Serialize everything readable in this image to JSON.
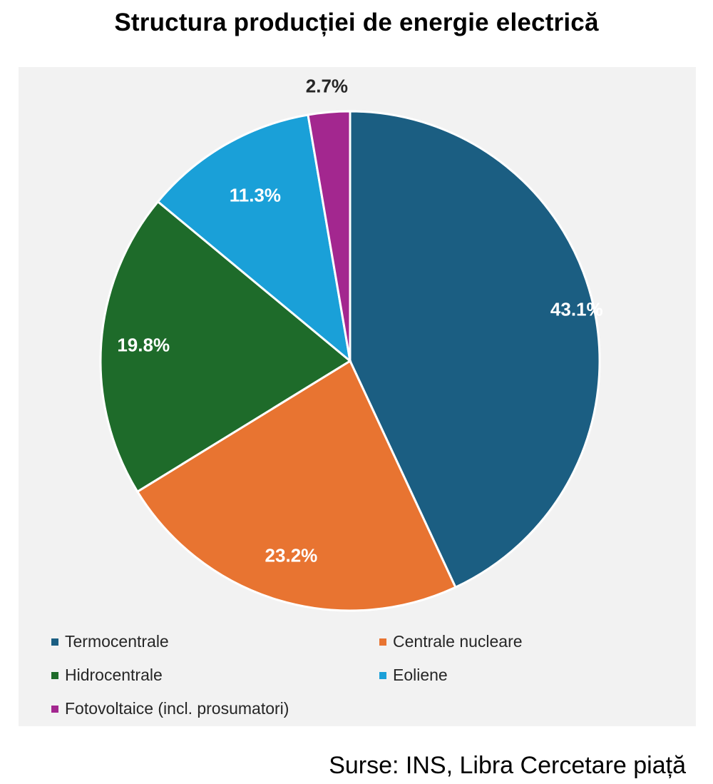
{
  "chart_data": {
    "type": "pie",
    "title": "Structura producției de energie electrică",
    "slices": [
      {
        "label": "Termocentrale",
        "value": 43.1,
        "display": "43.1%",
        "color": "#1b5e82",
        "label_color": "#ffffff"
      },
      {
        "label": "Centrale nucleare",
        "value": 23.2,
        "display": "23.2%",
        "color": "#e87431",
        "label_color": "#ffffff"
      },
      {
        "label": "Hidrocentrale",
        "value": 19.8,
        "display": "19.8%",
        "color": "#1e6b2a",
        "label_color": "#ffffff"
      },
      {
        "label": "Eoliene",
        "value": 11.3,
        "display": "11.3%",
        "color": "#1aa0d8",
        "label_color": "#ffffff"
      },
      {
        "label": "Fotovoltaice (incl. prosumatori)",
        "value": 2.7,
        "display": "2.7%",
        "color": "#a3278f",
        "label_color": "#262626"
      }
    ],
    "legend_position": "bottom",
    "start_angle": "12 o'clock",
    "direction": "clockwise"
  },
  "source": "Surse: INS, Libra Cercetare piață"
}
